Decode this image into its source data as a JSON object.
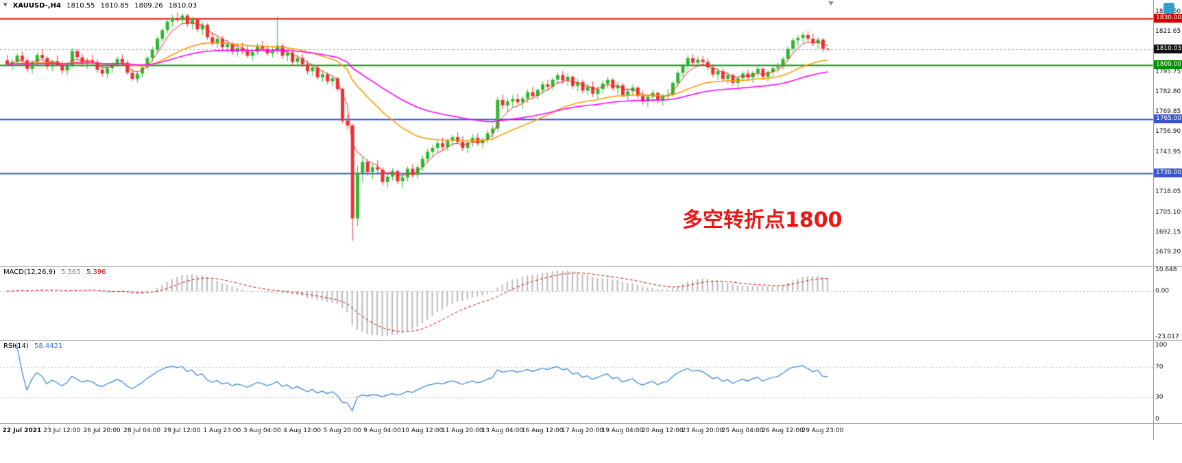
{
  "symbol_bar": {
    "symbol": "XAUUSD-,H4",
    "open": "1810.55",
    "high": "1810.85",
    "low": "1809.26",
    "close": "1810.03"
  },
  "icons": {
    "collapse_arrow": "▼",
    "platform_logo": "platform-logo",
    "chart_shift_marker": "chart-shift-marker"
  },
  "annotation": {
    "text": "多空转折点1800",
    "color": "#f01515"
  },
  "levels": [
    {
      "label": "1830.00",
      "value": 1830.0,
      "line_color": "#e60000",
      "badge_color": "#d40000",
      "style": "solid"
    },
    {
      "label": "1800.00",
      "value": 1800.0,
      "line_color": "#009b00",
      "badge_color": "#008f00",
      "style": "solid"
    },
    {
      "label": "1765.00",
      "value": 1765.0,
      "line_color": "#3a56c8",
      "badge_color": "#3a56c8",
      "style": "solid"
    },
    {
      "label": "1730.00",
      "value": 1730.0,
      "line_color": "#3a56c8",
      "badge_color": "#3a56c8",
      "style": "solid"
    },
    {
      "label": "1810.03",
      "value": 1810.03,
      "line_color": "#9a9ab0",
      "badge_color": "#101010",
      "style": "current"
    }
  ],
  "moving_averages": [
    {
      "name": "ma-fast",
      "period": 5,
      "color": "#ff2020",
      "width": 1
    },
    {
      "name": "ma-mid",
      "period": 28,
      "color": "#ff9b00",
      "width": 1.6
    },
    {
      "name": "ma-slow",
      "period": 55,
      "color": "#ff00ff",
      "width": 1.6
    }
  ],
  "indicators": {
    "macd": {
      "title": "MACD(12,26,9)",
      "value_main": "5.565",
      "value_signal": "5.396",
      "fast": 12,
      "slow": 26,
      "signal": 9,
      "axis": [
        {
          "label": "10.648",
          "value": 10.648
        },
        {
          "label": "0.00",
          "value": 0
        },
        {
          "label": "-23.017",
          "value": -23.017
        }
      ]
    },
    "rsi": {
      "title": "RSI(14)",
      "value": "58.4421",
      "period": 14,
      "axis": [
        100,
        70,
        30,
        0
      ],
      "levels": [
        70,
        30
      ]
    }
  },
  "colors": {
    "up": "#2eb82e",
    "down": "#f03030",
    "macd_hist": "#b9b9b9",
    "macd_signal": "#d40000",
    "rsi_line": "#2f7ed8",
    "grid_dotted": "#c8c8c8",
    "zero_line": "#bbbbbb"
  },
  "chart_data": {
    "type": "candlestick",
    "symbol": "XAUUSD",
    "timeframe": "H4",
    "price_axis": {
      "min": 1670,
      "max": 1842,
      "labels": [
        1834.6,
        1821.65,
        1808.7,
        1795.75,
        1782.8,
        1769.85,
        1756.9,
        1743.95,
        1731.0,
        1718.05,
        1705.1,
        1692.15,
        1679.2
      ]
    },
    "time_axis": {
      "first_candle_index": 3,
      "candle_step": 8,
      "labels": [
        "22 Jul 2021",
        "23 Jul 12:00",
        "26 Jul 20:00",
        "28 Jul 04:00",
        "29 Jul 12:00",
        "1 Aug 23:00",
        "3 Aug 04:00",
        "4 Aug 12:00",
        "5 Aug 20:00",
        "9 Aug 04:00",
        "10 Aug 12:00",
        "11 Aug 20:00",
        "13 Aug 04:00",
        "16 Aug 12:00",
        "17 Aug 20:00",
        "19 Aug 04:00",
        "20 Aug 12:00",
        "23 Aug 20:00",
        "25 Aug 04:00",
        "26 Aug 12:00",
        "29 Aug 23:00"
      ]
    },
    "candles": [
      [
        1803,
        1806.5,
        1799.5,
        1800.5
      ],
      [
        1800.5,
        1804,
        1797,
        1802
      ],
      [
        1802,
        1807.5,
        1800,
        1806
      ],
      [
        1806,
        1808.5,
        1801.5,
        1803
      ],
      [
        1803,
        1805,
        1795.5,
        1797.5
      ],
      [
        1797.5,
        1803.5,
        1794.5,
        1802
      ],
      [
        1802,
        1808,
        1800,
        1806.5
      ],
      [
        1806.5,
        1810.5,
        1803,
        1804.5
      ],
      [
        1804.5,
        1806,
        1797,
        1799
      ],
      [
        1799,
        1803.5,
        1796,
        1802.5
      ],
      [
        1802.5,
        1806,
        1799.5,
        1800
      ],
      [
        1800,
        1802.5,
        1794,
        1796.5
      ],
      [
        1796.5,
        1802,
        1793.5,
        1800
      ],
      [
        1800,
        1811,
        1798.5,
        1809
      ],
      [
        1809,
        1810.5,
        1803,
        1805
      ],
      [
        1805,
        1807,
        1799,
        1801
      ],
      [
        1801,
        1804.5,
        1797.5,
        1803
      ],
      [
        1803,
        1806.5,
        1800.5,
        1802
      ],
      [
        1802,
        1803.5,
        1795,
        1797
      ],
      [
        1797,
        1800,
        1792.5,
        1794.5
      ],
      [
        1794.5,
        1799.5,
        1791.5,
        1798
      ],
      [
        1798,
        1802,
        1795,
        1800.5
      ],
      [
        1800.5,
        1805.5,
        1798.5,
        1804
      ],
      [
        1804,
        1806.5,
        1799.5,
        1801.5
      ],
      [
        1801.5,
        1803,
        1793.5,
        1795
      ],
      [
        1795,
        1797.5,
        1789.5,
        1791
      ],
      [
        1791,
        1796,
        1788.5,
        1794.5
      ],
      [
        1794.5,
        1800,
        1792,
        1798.5
      ],
      [
        1798.5,
        1806,
        1796.5,
        1804.5
      ],
      [
        1804.5,
        1812,
        1802,
        1810
      ],
      [
        1810,
        1818.5,
        1808,
        1817
      ],
      [
        1817,
        1824,
        1815,
        1822.5
      ],
      [
        1822.5,
        1829.5,
        1820.5,
        1828
      ],
      [
        1828,
        1832.5,
        1825,
        1830.5
      ],
      [
        1830.5,
        1834,
        1827.5,
        1829
      ],
      [
        1829,
        1833.5,
        1826,
        1832
      ],
      [
        1832,
        1833,
        1824.5,
        1826.5
      ],
      [
        1826.5,
        1831,
        1823,
        1829.5
      ],
      [
        1829.5,
        1830.5,
        1821,
        1823
      ],
      [
        1823,
        1828,
        1819.5,
        1826
      ],
      [
        1826,
        1827,
        1816.5,
        1818
      ],
      [
        1818,
        1821.5,
        1812.5,
        1814
      ],
      [
        1814,
        1819,
        1811,
        1817
      ],
      [
        1817,
        1818.5,
        1809.5,
        1811.5
      ],
      [
        1811.5,
        1816,
        1808,
        1813.5
      ],
      [
        1813.5,
        1815,
        1806.5,
        1808.5
      ],
      [
        1808.5,
        1813,
        1805.5,
        1811
      ],
      [
        1811,
        1814.5,
        1807,
        1809
      ],
      [
        1809,
        1812.5,
        1804.5,
        1806
      ],
      [
        1806,
        1810,
        1803,
        1808.5
      ],
      [
        1808.5,
        1814,
        1806.5,
        1812
      ],
      [
        1812,
        1815.5,
        1809,
        1810.5
      ],
      [
        1810.5,
        1813,
        1806,
        1807.5
      ],
      [
        1807.5,
        1811.5,
        1805,
        1809.5
      ],
      [
        1809.5,
        1831.5,
        1807,
        1812.5
      ],
      [
        1812.5,
        1814,
        1804,
        1806
      ],
      [
        1806,
        1810.5,
        1802.5,
        1808
      ],
      [
        1808,
        1809.5,
        1800,
        1802
      ],
      [
        1802,
        1806.5,
        1799,
        1804.5
      ],
      [
        1804.5,
        1807,
        1798.5,
        1800.5
      ],
      [
        1800.5,
        1803,
        1794,
        1796
      ],
      [
        1796,
        1800.5,
        1793,
        1798.5
      ],
      [
        1798.5,
        1799.5,
        1790.5,
        1792
      ],
      [
        1792,
        1796.5,
        1789,
        1794
      ],
      [
        1794,
        1795.5,
        1787.5,
        1789.5
      ],
      [
        1789.5,
        1793,
        1786,
        1791.5
      ],
      [
        1791.5,
        1792.5,
        1783,
        1784.5
      ],
      [
        1784.5,
        1785.5,
        1762.5,
        1764
      ],
      [
        1764,
        1768,
        1758.5,
        1761
      ],
      [
        1761,
        1762,
        1686.5,
        1701
      ],
      [
        1701,
        1735,
        1696,
        1730.5
      ],
      [
        1730.5,
        1741,
        1724,
        1737.5
      ],
      [
        1737.5,
        1739.5,
        1728.5,
        1731
      ],
      [
        1731,
        1736,
        1726.5,
        1734
      ],
      [
        1734,
        1738.5,
        1730,
        1732.5
      ],
      [
        1732.5,
        1734,
        1722.5,
        1724.5
      ],
      [
        1724.5,
        1730,
        1721,
        1728
      ],
      [
        1728,
        1733.5,
        1725.5,
        1731.5
      ],
      [
        1731.5,
        1732.5,
        1723,
        1725
      ],
      [
        1725,
        1729.5,
        1720.5,
        1727.5
      ],
      [
        1727.5,
        1734.5,
        1725,
        1733
      ],
      [
        1733,
        1736,
        1727,
        1729
      ],
      [
        1729,
        1735.5,
        1726.5,
        1734
      ],
      [
        1734,
        1741.5,
        1731.5,
        1739.5
      ],
      [
        1739.5,
        1746,
        1737,
        1744
      ],
      [
        1744,
        1748.5,
        1740.5,
        1746.5
      ],
      [
        1746.5,
        1751.5,
        1743.5,
        1749.5
      ],
      [
        1749.5,
        1753,
        1745,
        1747
      ],
      [
        1747,
        1752.5,
        1744.5,
        1751
      ],
      [
        1751,
        1755,
        1747.5,
        1753.5
      ],
      [
        1753.5,
        1756.5,
        1749,
        1750.5
      ],
      [
        1750.5,
        1754,
        1744.5,
        1746.5
      ],
      [
        1746.5,
        1752,
        1743,
        1750
      ],
      [
        1750,
        1755.5,
        1747.5,
        1753
      ],
      [
        1753,
        1756,
        1748,
        1749.5
      ],
      [
        1749.5,
        1753.5,
        1746,
        1752
      ],
      [
        1752,
        1758,
        1749.5,
        1756
      ],
      [
        1756,
        1761,
        1752.5,
        1759
      ],
      [
        1759,
        1779.5,
        1756.5,
        1777.5
      ],
      [
        1777.5,
        1781,
        1771.5,
        1774
      ],
      [
        1774,
        1778.5,
        1770,
        1776.5
      ],
      [
        1776.5,
        1780.5,
        1773,
        1778
      ],
      [
        1778,
        1781.5,
        1774.5,
        1776
      ],
      [
        1776,
        1780,
        1772,
        1778.5
      ],
      [
        1778.5,
        1784.5,
        1775.5,
        1782.5
      ],
      [
        1782.5,
        1786,
        1778,
        1780
      ],
      [
        1780,
        1785.5,
        1777.5,
        1784
      ],
      [
        1784,
        1789.5,
        1781,
        1787.5
      ],
      [
        1787.5,
        1790.5,
        1783.5,
        1786
      ],
      [
        1786,
        1792,
        1784,
        1790.5
      ],
      [
        1790.5,
        1795.5,
        1787.5,
        1793.5
      ],
      [
        1793.5,
        1796,
        1788,
        1790
      ],
      [
        1790,
        1794.5,
        1786.5,
        1792.5
      ],
      [
        1792.5,
        1793.5,
        1784.5,
        1786.5
      ],
      [
        1786.5,
        1791,
        1783,
        1789
      ],
      [
        1789,
        1790.5,
        1781.5,
        1783.5
      ],
      [
        1783.5,
        1788,
        1780.5,
        1786
      ],
      [
        1786,
        1789.5,
        1779.5,
        1781.5
      ],
      [
        1781.5,
        1786.5,
        1778,
        1784.5
      ],
      [
        1784.5,
        1790,
        1782,
        1788
      ],
      [
        1788,
        1792.5,
        1785,
        1790.5
      ],
      [
        1790.5,
        1791.5,
        1783.5,
        1785
      ],
      [
        1785,
        1789,
        1781,
        1787
      ],
      [
        1787,
        1788.5,
        1779,
        1780.5
      ],
      [
        1780.5,
        1785,
        1777,
        1783
      ],
      [
        1783,
        1787.5,
        1780,
        1785.5
      ],
      [
        1785.5,
        1786.5,
        1778.5,
        1780
      ],
      [
        1780,
        1783.5,
        1774.5,
        1776.5
      ],
      [
        1776.5,
        1781,
        1773,
        1779.5
      ],
      [
        1779.5,
        1784,
        1776,
        1782
      ],
      [
        1782,
        1783,
        1775,
        1777
      ],
      [
        1777,
        1781.5,
        1774,
        1780
      ],
      [
        1780,
        1784.5,
        1777.5,
        1781
      ],
      [
        1781,
        1790,
        1779.5,
        1788.5
      ],
      [
        1788.5,
        1796.5,
        1786,
        1795
      ],
      [
        1795,
        1801,
        1792.5,
        1799.5
      ],
      [
        1799.5,
        1806.5,
        1797,
        1804.5
      ],
      [
        1804.5,
        1807,
        1799,
        1801.5
      ],
      [
        1801.5,
        1805.5,
        1798.5,
        1803.5
      ],
      [
        1803.5,
        1806,
        1800,
        1802
      ],
      [
        1802,
        1804.5,
        1796.5,
        1798.5
      ],
      [
        1798.5,
        1800.5,
        1792,
        1794
      ],
      [
        1794,
        1798,
        1790.5,
        1796
      ],
      [
        1796,
        1797.5,
        1789,
        1791
      ],
      [
        1791,
        1795.5,
        1788,
        1793.5
      ],
      [
        1793.5,
        1794.5,
        1786.5,
        1788.5
      ],
      [
        1788.5,
        1793,
        1785.5,
        1791.5
      ],
      [
        1791.5,
        1796,
        1789.5,
        1794.5
      ],
      [
        1794.5,
        1797,
        1790,
        1792
      ],
      [
        1792,
        1796.5,
        1788.5,
        1795
      ],
      [
        1795,
        1799,
        1792.5,
        1797.5
      ],
      [
        1797.5,
        1798.5,
        1790.5,
        1792.5
      ],
      [
        1792.5,
        1797,
        1789.5,
        1795.5
      ],
      [
        1795.5,
        1800,
        1793,
        1798
      ],
      [
        1798,
        1801.5,
        1795,
        1799
      ],
      [
        1799,
        1805.5,
        1797,
        1804
      ],
      [
        1804,
        1812,
        1802.5,
        1810.5
      ],
      [
        1810.5,
        1817.5,
        1808,
        1816
      ],
      [
        1816,
        1819.5,
        1812.5,
        1817.5
      ],
      [
        1817.5,
        1821.5,
        1814.5,
        1819.5
      ],
      [
        1819.5,
        1822,
        1815,
        1817
      ],
      [
        1817,
        1820.5,
        1812,
        1814
      ],
      [
        1814,
        1818,
        1810.5,
        1816.5
      ],
      [
        1816.5,
        1817.5,
        1808.5,
        1810.5
      ],
      [
        1810.55,
        1810.85,
        1809.26,
        1810.03
      ]
    ]
  }
}
